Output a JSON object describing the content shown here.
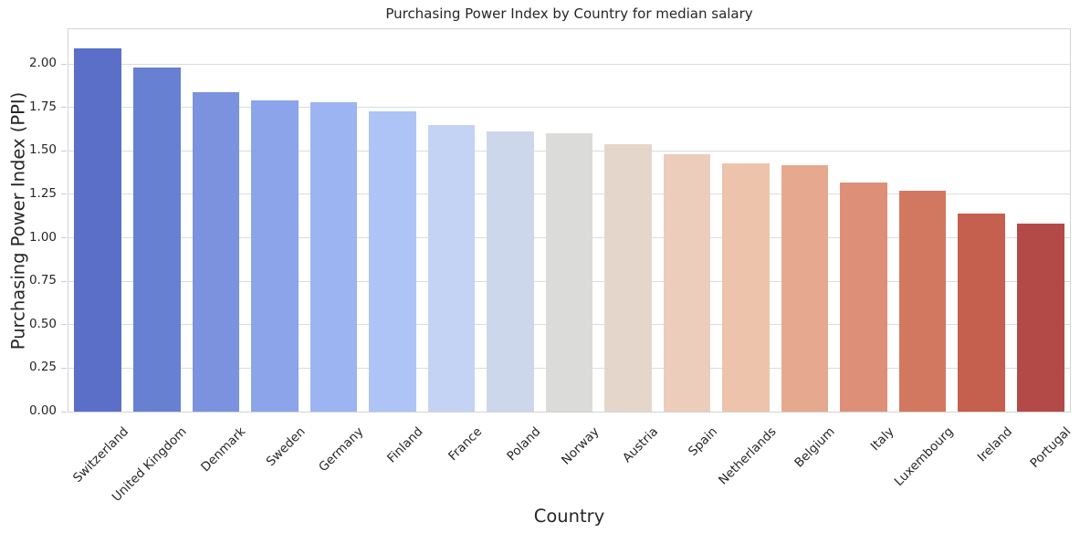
{
  "chart_data": {
    "type": "bar",
    "title": "Purchasing Power Index by Country for median salary",
    "xlabel": "Country",
    "ylabel": "Purchasing Power Index (PPI)",
    "categories": [
      "Switzerland",
      "United Kingdom",
      "Denmark",
      "Sweden",
      "Germany",
      "Finland",
      "France",
      "Poland",
      "Norway",
      "Austria",
      "Spain",
      "Netherlands",
      "Belgium",
      "Italy",
      "Luxembourg",
      "Ireland",
      "Portugal"
    ],
    "values": [
      2.09,
      1.98,
      1.84,
      1.79,
      1.78,
      1.73,
      1.65,
      1.61,
      1.6,
      1.54,
      1.48,
      1.43,
      1.42,
      1.32,
      1.27,
      1.14,
      1.08
    ],
    "bar_colors": [
      "#5b6fc8",
      "#6880d2",
      "#7b93de",
      "#8ba4ea",
      "#9cb4f2",
      "#aec3f6",
      "#c4d3f4",
      "#cdd7eb",
      "#dbdcd9",
      "#e5d6cb",
      "#eccdbb",
      "#eec3ab",
      "#e6a98f",
      "#dd9077",
      "#d27860",
      "#c55f4e",
      "#b34a48"
    ],
    "palette": "coolwarm",
    "ylim": [
      0,
      2.2
    ],
    "yticks": [
      0,
      0.25,
      0.5,
      0.75,
      1.0,
      1.25,
      1.5,
      1.75,
      2.0
    ],
    "ytick_labels": [
      "0.00",
      "0.25",
      "0.50",
      "0.75",
      "1.00",
      "1.25",
      "1.50",
      "1.75",
      "2.00"
    ],
    "grid": true,
    "legend": null,
    "x_tick_rotation_deg": 45
  },
  "colors": {
    "background": "#ffffff",
    "grid": "#dcdcdc",
    "axes_border": "#d3d3d3",
    "tick": "#cccccc",
    "text": "#262626"
  }
}
